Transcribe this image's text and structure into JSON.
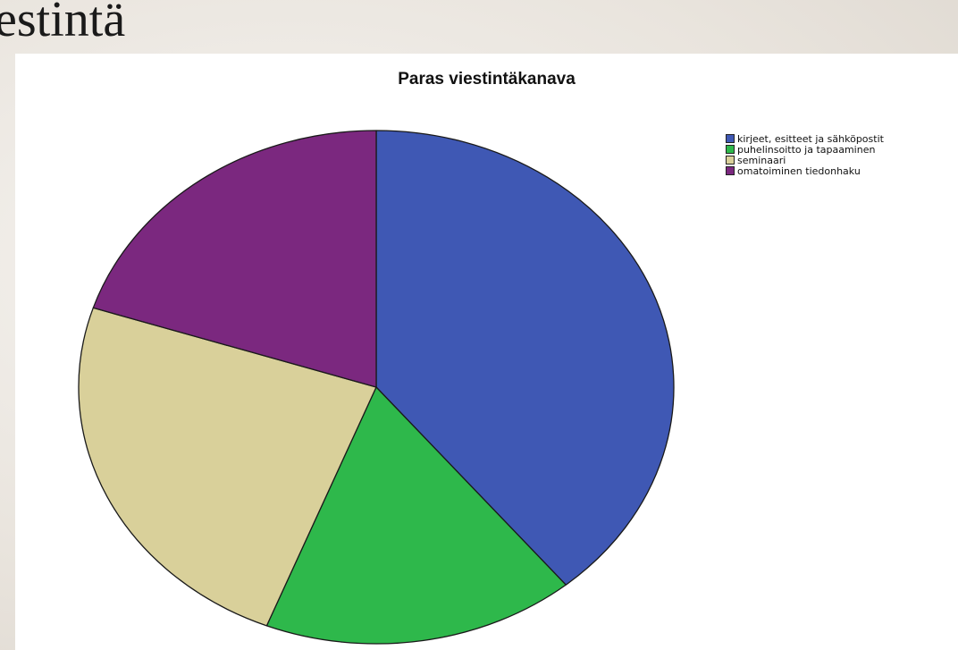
{
  "slide": {
    "title_fragment": "estintä"
  },
  "chart_data": {
    "type": "pie",
    "title": "Paras viestintäkanava",
    "categories": [
      "kirjeet, esitteet ja sähköpostit",
      "puhelinsoitto ja tapaaminen",
      "seminaari",
      "omatoiminen tiedonhaku"
    ],
    "values": [
      39,
      17,
      24,
      20
    ],
    "colors": [
      "#3f58b4",
      "#2eb84b",
      "#d9d09a",
      "#7b287f"
    ],
    "start_angle_deg": 0,
    "direction": "clockwise",
    "legend_position": "top-right"
  }
}
